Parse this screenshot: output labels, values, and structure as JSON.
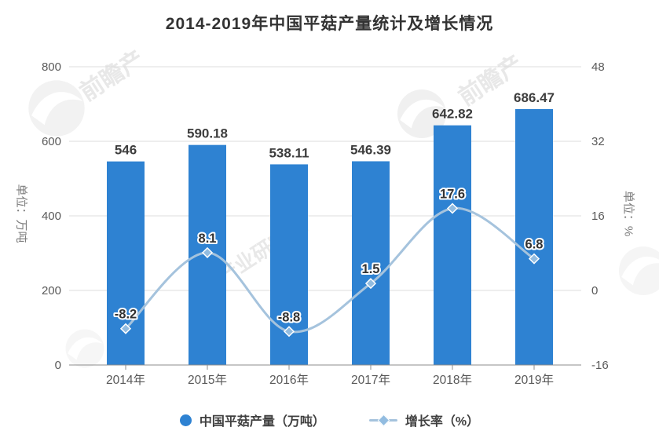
{
  "title": "2014-2019年中国平菇产量统计及增长情况",
  "colors": {
    "bar": "#2e82d2",
    "line": "#a5c3dd",
    "marker": "#92bce0",
    "grid": "#dddddd",
    "axis": "#8c8c8c",
    "tick_text": "#595959",
    "bar_label": "#3d3d3d",
    "line_label": "#333333",
    "label_halo": "#ffffff"
  },
  "watermarks": {
    "brand": "前瞻产业研究院",
    "items": [
      {
        "text": "前瞻产"
      },
      {
        "text": "前瞻产"
      },
      {
        "text": "产业研究院"
      }
    ]
  },
  "chart_data": {
    "type": "bar+line",
    "title": "2014-2019年中国平菇产量统计及增长情况",
    "categories": [
      "2014年",
      "2015年",
      "2016年",
      "2017年",
      "2018年",
      "2019年"
    ],
    "series": [
      {
        "name": "中国平菇产量（万吨）",
        "type": "bar",
        "axis": "left",
        "values": [
          546,
          590.18,
          538.11,
          546.39,
          642.82,
          686.47
        ],
        "labels": [
          "546",
          "590.18",
          "538.11",
          "546.39",
          "642.82",
          "686.47"
        ]
      },
      {
        "name": "增长率（%）",
        "type": "line",
        "axis": "right",
        "values": [
          -8.2,
          8.1,
          -8.8,
          1.5,
          17.6,
          6.8
        ],
        "labels": [
          "-8.2",
          "8.1",
          "-8.8",
          "1.5",
          "17.6",
          "6.8"
        ]
      }
    ],
    "left_axis": {
      "title": "单位：万吨",
      "ticks": [
        "0",
        "200",
        "400",
        "600",
        "800"
      ],
      "range": [
        0,
        800
      ]
    },
    "right_axis": {
      "title": "单位：%",
      "ticks": [
        "-16",
        "0",
        "16",
        "32",
        "48"
      ],
      "range": [
        -16,
        48
      ]
    },
    "legend": [
      "中国平菇产量（万吨）",
      "增长率（%）"
    ],
    "grid": true,
    "legend_position": "bottom"
  }
}
